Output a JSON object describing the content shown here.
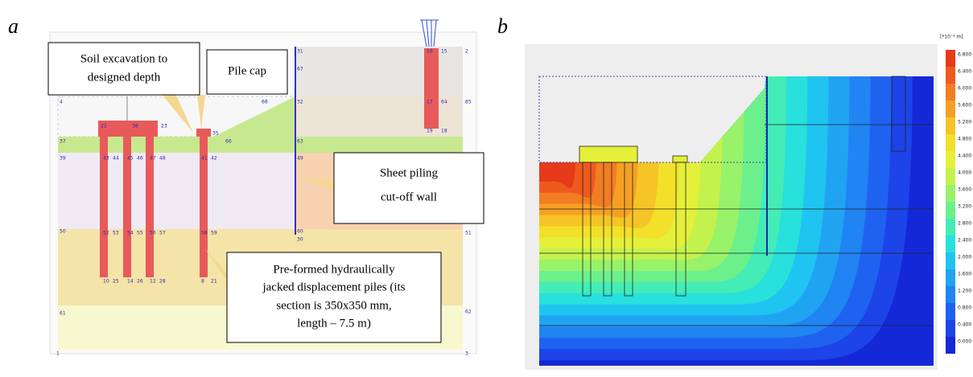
{
  "panel_a": {
    "label": "a",
    "callouts": [
      "Soil excavation to",
      "designed depth",
      "Pile cap",
      "Sheet piling",
      "cut-off wall",
      "Pre-formed hydraulically",
      "jacked displacement piles  (its",
      "section is 350x350  mm,",
      "length – 7.5 m)"
    ],
    "node_labels": [
      "22",
      "38",
      "23",
      "37",
      "39",
      "43",
      "44",
      "45",
      "46",
      "47",
      "48",
      "41",
      "42",
      "50",
      "52",
      "53",
      "54",
      "55",
      "56",
      "57",
      "58",
      "59",
      "10",
      "25",
      "14",
      "26",
      "12",
      "28",
      "8",
      "21",
      "68",
      "32",
      "63",
      "49",
      "60",
      "30",
      "51",
      "61",
      "62",
      "65",
      "16",
      "15",
      "17",
      "64",
      "19",
      "18",
      "66",
      "35",
      "4",
      "2",
      "3",
      "1",
      "67",
      "31"
    ]
  },
  "panel_b": {
    "label": "b",
    "legend": {
      "unit": "[*10⁻³ m]",
      "labels": [
        "6.800",
        "6.400",
        "6.000",
        "5.600",
        "5.200",
        "4.800",
        "4.400",
        "4.000",
        "3.600",
        "3.200",
        "2.800",
        "2.400",
        "2.000",
        "1.600",
        "1.200",
        "0.800",
        "0.400",
        "0.000"
      ],
      "colors": [
        "#e63a1a",
        "#ee5a1e",
        "#f27d22",
        "#f5a024",
        "#f5c426",
        "#f2e02a",
        "#e4f03a",
        "#c4f24c",
        "#98f26a",
        "#6cf08c",
        "#44ecb6",
        "#28e0dc",
        "#20c4f0",
        "#20a4f2",
        "#2084f2",
        "#2062f0",
        "#1c44e8",
        "#1428d8"
      ]
    }
  }
}
